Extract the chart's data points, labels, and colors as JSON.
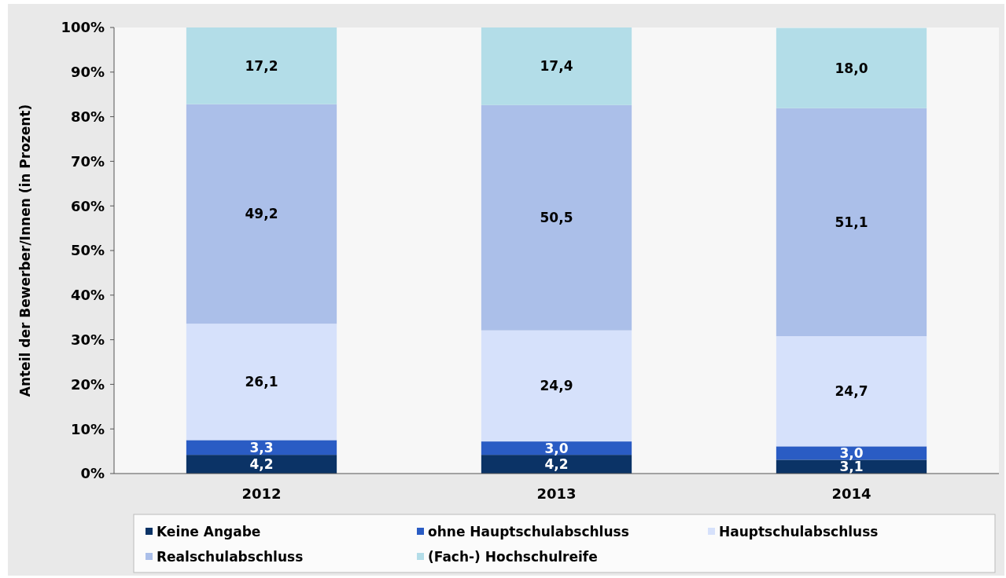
{
  "chart_data": {
    "type": "bar",
    "stacked": true,
    "ylabel": "Anteil der Bewerber/Innen (in Prozent)",
    "categories": [
      "2012",
      "2013",
      "2014"
    ],
    "series": [
      {
        "name": "Keine Angabe",
        "color": "#0b3366",
        "values": [
          4.2,
          4.2,
          3.1
        ],
        "value_labels": [
          "4,2",
          "4,2",
          "3,1"
        ]
      },
      {
        "name": "ohne Hauptschulabschluss",
        "color": "#2a5cc4",
        "values": [
          3.3,
          3.0,
          3.0
        ],
        "value_labels": [
          "3,3",
          "3,0",
          "3,0"
        ]
      },
      {
        "name": "Hauptschulabschluss",
        "color": "#d6e1fb",
        "values": [
          26.1,
          24.9,
          24.7
        ],
        "value_labels": [
          "26,1",
          "24,9",
          "24,7"
        ]
      },
      {
        "name": "Realschulabschluss",
        "color": "#abbfe9",
        "values": [
          49.2,
          50.5,
          51.1
        ],
        "value_labels": [
          "49,2",
          "50,5",
          "51,1"
        ]
      },
      {
        "name": "(Fach-) Hochschulreife",
        "color": "#b3dde8",
        "values": [
          17.2,
          17.4,
          18.0
        ],
        "value_labels": [
          "17,2",
          "17,4",
          "18,0"
        ]
      }
    ],
    "ylim": [
      0,
      100
    ],
    "yticks": [
      {
        "value": 0,
        "label": "0%"
      },
      {
        "value": 10,
        "label": "10%"
      },
      {
        "value": 20,
        "label": "20%"
      },
      {
        "value": 30,
        "label": "30%"
      },
      {
        "value": 40,
        "label": "40%"
      },
      {
        "value": 50,
        "label": "50%"
      },
      {
        "value": 60,
        "label": "60%"
      },
      {
        "value": 70,
        "label": "70%"
      },
      {
        "value": 80,
        "label": "80%"
      },
      {
        "value": 90,
        "label": "90%"
      },
      {
        "value": 100,
        "label": "100%"
      }
    ],
    "legend": "bottom"
  }
}
